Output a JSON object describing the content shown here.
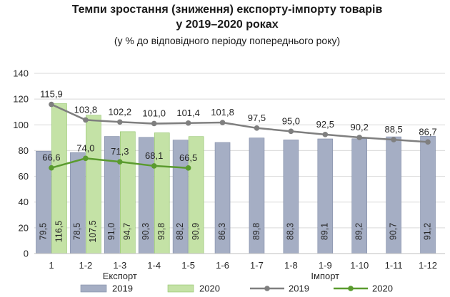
{
  "colors": {
    "bar2019": "#a5aec4",
    "bar2019_stroke": "#7f8aa6",
    "bar2020": "#c4e2a6",
    "bar2020_stroke": "#8fc267",
    "line2019": "#7f7f7f",
    "line2020": "#5a9b2e",
    "grid": "#d9d9d9"
  },
  "chart_data": {
    "type": "bar",
    "title": "Темпи зростання (зниження) експорту-імпорту товарів",
    "title_line2": "у 2019–2020 роках",
    "subtitle": "(у % до відповідного періоду попереднього року)",
    "ylim": [
      0,
      140
    ],
    "y_ticks": [
      0,
      20,
      40,
      60,
      80,
      100,
      120,
      140
    ],
    "grid": true,
    "legend_position": "bottom",
    "categories": [
      "1",
      "1-2",
      "1-3",
      "1-4",
      "1-5",
      "1-6",
      "1-7",
      "1-8",
      "1-9",
      "1-10",
      "1-11",
      "1-12"
    ],
    "group_labels": [
      {
        "text": "Експорт",
        "from": 0,
        "to": 4
      },
      {
        "text": "Імпорт",
        "from": 5,
        "to": 11
      }
    ],
    "series": [
      {
        "name": "2019",
        "kind": "bar",
        "values": [
          79.5,
          78.5,
          91.0,
          90.3,
          88.2,
          86.3,
          89.8,
          88.3,
          89.1,
          89.2,
          90.7,
          91.2
        ],
        "labels": [
          "79,5",
          "78,5",
          "91,0",
          "90,3",
          "88,2",
          "86,3",
          "89,8",
          "88,3",
          "89,1",
          "89,2",
          "90,7",
          "91,2"
        ]
      },
      {
        "name": "2020",
        "kind": "bar",
        "values": [
          116.5,
          107.5,
          94.7,
          93.8,
          90.9,
          null,
          null,
          null,
          null,
          null,
          null,
          null
        ],
        "labels": [
          "116,5",
          "107,5",
          "94,7",
          "93,8",
          "90,9"
        ]
      },
      {
        "name": "2019",
        "kind": "line",
        "values": [
          115.9,
          103.8,
          102.2,
          101.0,
          101.4,
          101.8,
          97.5,
          95.0,
          92.5,
          90.2,
          88.5,
          86.7
        ],
        "labels": [
          "115,9",
          "103,8",
          "102,2",
          "101,0",
          "101,4",
          "101,8",
          "97,5",
          "95,0",
          "92,5",
          "90,2",
          "88,5",
          "86,7"
        ]
      },
      {
        "name": "2020",
        "kind": "line",
        "values": [
          66.6,
          74.0,
          71.3,
          68.1,
          66.5,
          null,
          null,
          null,
          null,
          null,
          null,
          null
        ],
        "labels": [
          "66,6",
          "74,0",
          "71,3",
          "68,1",
          "66,5"
        ]
      }
    ]
  }
}
